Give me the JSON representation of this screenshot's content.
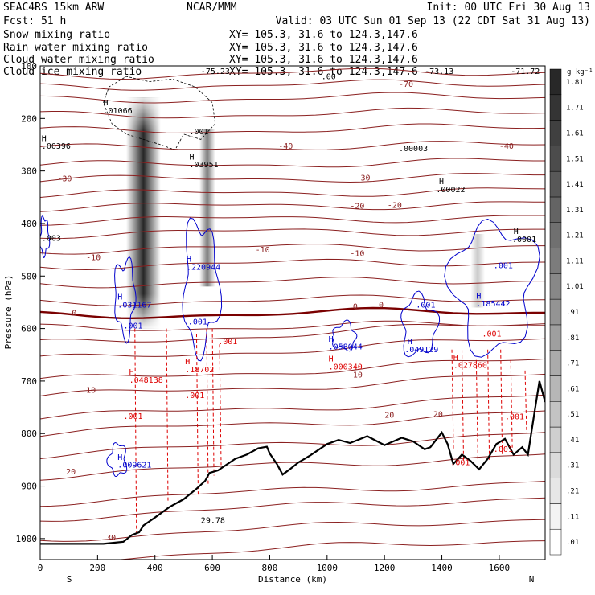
{
  "header": {
    "line1_left": "SEAC4RS 15km ARW",
    "line1_center": "NCAR/MMM",
    "line1_right": "Init: 00 UTC Fri 30 Aug 13",
    "line2_left": "Fcst:   51 h",
    "line2_right": "Valid: 03 UTC Sun 01 Sep 13 (22 CDT Sat 31 Aug 13)"
  },
  "legend": [
    {
      "name": "Snow mixing ratio",
      "color": "#000000",
      "xy": "XY= 105.3, 31.6 to 124.3,147.6"
    },
    {
      "name": "Rain water mixing ratio",
      "color": "#dd0000",
      "xy": "XY= 105.3, 31.6 to 124.3,147.6"
    },
    {
      "name": "Cloud water mixing ratio",
      "color": "#0000cc",
      "xy": "XY= 105.3, 31.6 to 124.3,147.6"
    },
    {
      "name": "Cloud ice mixing ratio",
      "color": "#000000",
      "xy": "XY= 105.3, 31.6 to 124.3,147.6"
    }
  ],
  "colors": {
    "temperature": "#8b2020",
    "freezing": "#7a0000",
    "rain": "#dd0000",
    "cloud_water": "#0000cc",
    "terrain": "#000000"
  },
  "chart_data": {
    "type": "area",
    "xlabel": "Distance (km)",
    "ylabel": "Pressure (hPa)",
    "xlim": [
      0,
      1760
    ],
    "ylim": [
      1040,
      100
    ],
    "x_ticks": [
      0,
      200,
      400,
      600,
      800,
      1000,
      1200,
      1400,
      1600
    ],
    "y_ticks": [
      1000,
      900,
      800,
      700,
      600,
      500,
      400,
      300,
      200,
      100
    ],
    "endpoints": {
      "left": "S",
      "right": "N"
    },
    "colorbar": {
      "unit": "g kg⁻¹",
      "levels": [
        ".01",
        ".11",
        ".21",
        ".31",
        ".41",
        ".51",
        ".61",
        ".71",
        ".81",
        ".91",
        "1.01",
        "1.11",
        "1.21",
        "1.31",
        "1.41",
        "1.51",
        "1.61",
        "1.71",
        "1.81"
      ]
    },
    "terrain": {
      "x": [
        0,
        220,
        290,
        320,
        345,
        360,
        400,
        450,
        500,
        545,
        575,
        590,
        620,
        680,
        720,
        760,
        790,
        800,
        825,
        845,
        870,
        900,
        940,
        1000,
        1040,
        1080,
        1140,
        1200,
        1260,
        1300,
        1340,
        1360,
        1380,
        1400,
        1420,
        1440,
        1470,
        1500,
        1530,
        1560,
        1590,
        1620,
        1650,
        1680,
        1700,
        1720,
        1740,
        1760
      ],
      "p": [
        1010,
        1010,
        1006,
        993,
        988,
        975,
        960,
        940,
        925,
        905,
        890,
        875,
        870,
        848,
        840,
        828,
        825,
        838,
        858,
        878,
        868,
        855,
        842,
        820,
        812,
        818,
        805,
        822,
        808,
        815,
        830,
        826,
        812,
        798,
        820,
        858,
        840,
        852,
        868,
        848,
        820,
        810,
        840,
        826,
        840,
        770,
        700,
        740
      ]
    },
    "isotherm_labels": [
      {
        "text": "-70",
        "x": 1250,
        "p": 140
      },
      {
        "text": "-40",
        "x": 830,
        "p": 258
      },
      {
        "text": "-40",
        "x": 1600,
        "p": 258
      },
      {
        "text": "-30",
        "x": 60,
        "p": 320
      },
      {
        "text": "-30",
        "x": 1100,
        "p": 318
      },
      {
        "text": "-20",
        "x": 1080,
        "p": 372
      },
      {
        "text": "-20",
        "x": 1210,
        "p": 370
      },
      {
        "text": "-10",
        "x": 160,
        "p": 470
      },
      {
        "text": "-10",
        "x": 750,
        "p": 455
      },
      {
        "text": "-10",
        "x": 1080,
        "p": 462
      },
      {
        "text": "0",
        "x": 110,
        "p": 575
      },
      {
        "text": "0",
        "x": 1090,
        "p": 563
      },
      {
        "text": "0",
        "x": 1180,
        "p": 560
      },
      {
        "text": "10",
        "x": 160,
        "p": 722
      },
      {
        "text": "10",
        "x": 1090,
        "p": 693
      },
      {
        "text": "20",
        "x": 90,
        "p": 878
      },
      {
        "text": "20",
        "x": 1200,
        "p": 770
      },
      {
        "text": "20",
        "x": 1370,
        "p": 768
      },
      {
        "text": "30",
        "x": 230,
        "p": 1003
      }
    ],
    "black_labels": [
      {
        "text": "H",
        "x": 220,
        "p": 175
      },
      {
        "text": ".01066",
        "x": 220,
        "p": 190
      },
      {
        "text": "H",
        "x": 5,
        "p": 243
      },
      {
        "text": ".00396",
        "x": 5,
        "p": 258
      },
      {
        "text": ".001",
        "x": 520,
        "p": 230
      },
      {
        "text": "H",
        "x": 520,
        "p": 278
      },
      {
        "text": ".03951",
        "x": 520,
        "p": 293
      },
      {
        "text": ".00003",
        "x": 1250,
        "p": 262
      },
      {
        "text": "H",
        "x": 1390,
        "p": 325
      },
      {
        "text": ".00022",
        "x": 1380,
        "p": 340
      },
      {
        "text": ".003",
        "x": 5,
        "p": 433
      },
      {
        "text": "H",
        "x": 1650,
        "p": 420
      },
      {
        "text": ".0001",
        "x": 1645,
        "p": 435
      },
      {
        "text": ".00",
        "x": 980,
        "p": 125
      },
      {
        "text": "-73.13",
        "x": 1340,
        "p": 115
      },
      {
        "text": "-71.72",
        "x": 1640,
        "p": 115
      },
      {
        "text": "-75.23",
        "x": 560,
        "p": 115
      },
      {
        "text": "29.78",
        "x": 560,
        "p": 970
      }
    ],
    "blue_labels": [
      {
        "text": "H",
        "x": 510,
        "p": 473
      },
      {
        "text": ".220944",
        "x": 510,
        "p": 488
      },
      {
        "text": "H",
        "x": 270,
        "p": 545
      },
      {
        "text": ".031167",
        "x": 270,
        "p": 560
      },
      {
        "text": ".001",
        "x": 290,
        "p": 600
      },
      {
        "text": ".001",
        "x": 515,
        "p": 592
      },
      {
        "text": "H",
        "x": 1005,
        "p": 625
      },
      {
        "text": ".058044",
        "x": 1005,
        "p": 640
      },
      {
        "text": "H",
        "x": 1280,
        "p": 630
      },
      {
        "text": ".049129",
        "x": 1270,
        "p": 645
      },
      {
        "text": ".001",
        "x": 1310,
        "p": 560
      },
      {
        "text": ".001",
        "x": 1580,
        "p": 485
      },
      {
        "text": "H",
        "x": 1520,
        "p": 543
      },
      {
        "text": ".185442",
        "x": 1520,
        "p": 558
      },
      {
        "text": "H",
        "x": 270,
        "p": 850
      },
      {
        "text": ".009621",
        "x": 270,
        "p": 865
      }
    ],
    "red_labels": [
      {
        "text": ".001",
        "x": 620,
        "p": 630
      },
      {
        "text": "H",
        "x": 505,
        "p": 668
      },
      {
        "text": ".18702",
        "x": 505,
        "p": 683
      },
      {
        "text": ".001",
        "x": 505,
        "p": 732
      },
      {
        "text": "H",
        "x": 310,
        "p": 688
      },
      {
        "text": ".048138",
        "x": 310,
        "p": 703
      },
      {
        "text": ".001",
        "x": 290,
        "p": 772
      },
      {
        "text": "H",
        "x": 1005,
        "p": 663
      },
      {
        "text": ".000340",
        "x": 1005,
        "p": 678
      },
      {
        "text": "H",
        "x": 1440,
        "p": 660
      },
      {
        "text": ".027860",
        "x": 1440,
        "p": 675
      },
      {
        "text": ".001",
        "x": 1540,
        "p": 615
      },
      {
        "text": ".001",
        "x": 1430,
        "p": 860
      },
      {
        "text": ".001",
        "x": 1620,
        "p": 773
      },
      {
        "text": ".001",
        "x": 1580,
        "p": 835
      }
    ]
  }
}
